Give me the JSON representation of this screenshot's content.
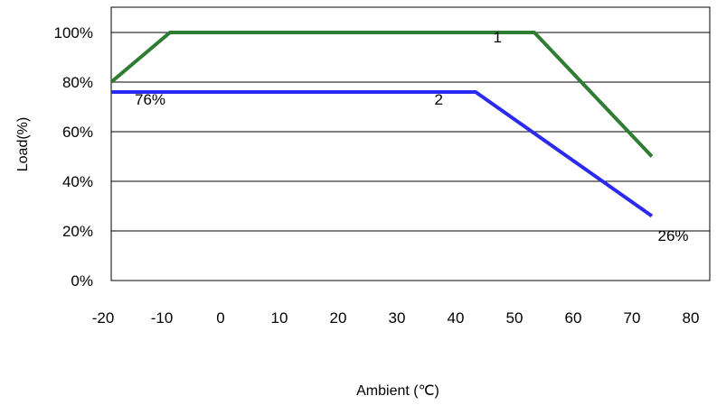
{
  "chart_data": {
    "type": "line",
    "xlabel": "Ambient (℃)",
    "ylabel": "Load(%)",
    "xlim": [
      -20,
      80
    ],
    "ylim": [
      0,
      100
    ],
    "x_ticks": [
      "-20",
      "-10",
      "0",
      "10",
      "20",
      "30",
      "40",
      "50",
      "60",
      "70",
      "80"
    ],
    "y_ticks": [
      "0%",
      "20%",
      "40%",
      "60%",
      "80%",
      "100%"
    ],
    "grid": "horizontal",
    "series": [
      {
        "name": "1",
        "color": "#2e7d32",
        "points": [
          [
            -20,
            80
          ],
          [
            -10,
            100
          ],
          [
            52,
            100
          ],
          [
            72,
            50
          ]
        ]
      },
      {
        "name": "2",
        "color": "#2a2af0",
        "points": [
          [
            -20,
            76
          ],
          [
            42,
            76
          ],
          [
            72,
            26
          ]
        ]
      }
    ],
    "annotations": [
      {
        "text": "1",
        "x": 45,
        "y": 96
      },
      {
        "text": "2",
        "x": 35,
        "y": 71
      },
      {
        "text": "76%",
        "x": -16,
        "y": 71
      },
      {
        "text": "26%",
        "x": 73,
        "y": 16
      }
    ]
  }
}
